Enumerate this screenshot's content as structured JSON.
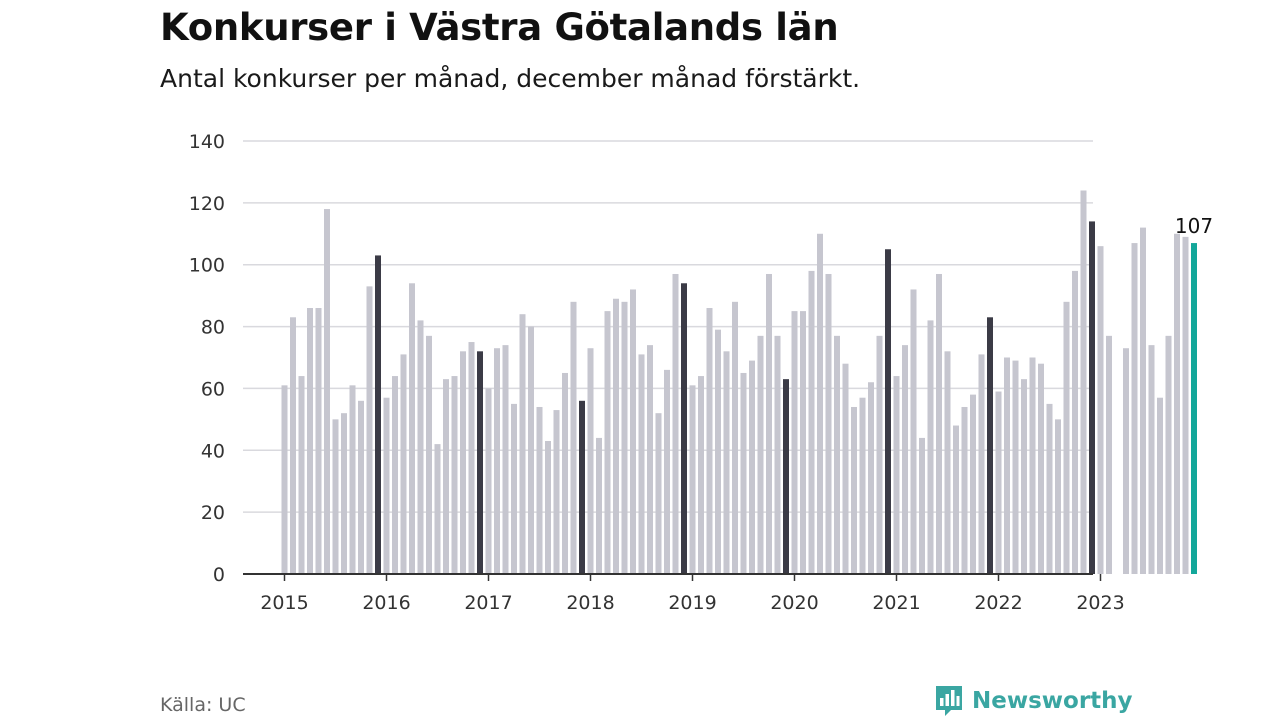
{
  "header": {
    "title": "Konkurser i Västra Götalands län",
    "subtitle": "Antal konkurser per månad, december månad förstärkt."
  },
  "footer": {
    "source": "Källa: UC",
    "brand": "Newsworthy"
  },
  "colors": {
    "regular_bar": "#c6c6cf",
    "december_bar": "#3b3b46",
    "latest_bar": "#13a79a",
    "gridline": "#d9d9de",
    "axis": "#333333",
    "brand": "#3aa6a2"
  },
  "chart_data": {
    "type": "bar",
    "title": "Konkurser i Västra Götalands län",
    "subtitle": "Antal konkurser per månad, december månad förstärkt.",
    "start_month": "2015-01",
    "x_tick_labels": [
      "2015",
      "2016",
      "2017",
      "2018",
      "2019",
      "2020",
      "2021",
      "2022",
      "2023"
    ],
    "y_ticks": [
      0,
      20,
      40,
      60,
      80,
      100,
      120,
      140
    ],
    "ylim": [
      0,
      140
    ],
    "grid": true,
    "highlight": "december bars dark, latest month teal with value label",
    "annotation": "107",
    "values": [
      61,
      83,
      64,
      86,
      86,
      118,
      50,
      52,
      61,
      56,
      93,
      103,
      57,
      64,
      71,
      94,
      82,
      77,
      42,
      63,
      64,
      72,
      75,
      72,
      60,
      73,
      74,
      55,
      84,
      80,
      54,
      43,
      53,
      65,
      88,
      56,
      73,
      44,
      85,
      89,
      88,
      92,
      71,
      74,
      52,
      66,
      97,
      94,
      61,
      64,
      86,
      79,
      72,
      88,
      65,
      69,
      77,
      97,
      77,
      63,
      85,
      85,
      98,
      110,
      97,
      77,
      68,
      54,
      57,
      62,
      77,
      105,
      64,
      74,
      92,
      44,
      82,
      97,
      72,
      48,
      54,
      58,
      71,
      83,
      59,
      70,
      69,
      63,
      70,
      68,
      55,
      50,
      88,
      98,
      124,
      114,
      106,
      77,
      0,
      73,
      107,
      112,
      74,
      57,
      77,
      110,
      109,
      107
    ]
  }
}
